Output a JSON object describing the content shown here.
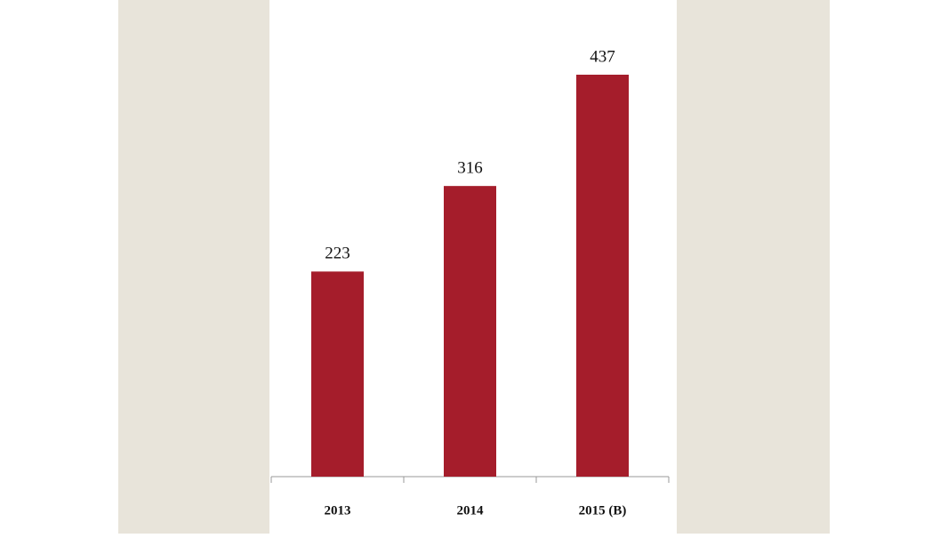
{
  "chart_data": {
    "type": "bar",
    "categories": [
      "2013",
      "2014",
      "2015 (B)"
    ],
    "values": [
      223,
      316,
      437
    ],
    "color": "#a51d2b"
  }
}
